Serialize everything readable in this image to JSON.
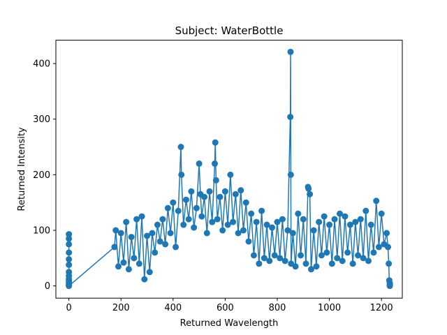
{
  "chart_data": {
    "type": "line",
    "title": "Subject: WaterBottle",
    "xlabel": "Returned Wavelength",
    "ylabel": "Returned Intensity",
    "xlim": [
      -50,
      1280
    ],
    "ylim": [
      -22,
      442
    ],
    "xticks": [
      "0",
      "200",
      "400",
      "600",
      "800",
      "1000",
      "1200"
    ],
    "yticks": [
      "0",
      "100",
      "200",
      "300",
      "400"
    ],
    "xtick_values": [
      0,
      200,
      400,
      600,
      800,
      1000,
      1200
    ],
    "ytick_values": [
      0,
      100,
      200,
      300,
      400
    ],
    "grid": false,
    "marker": "circle",
    "series_color": "#1f77b4",
    "series": [
      {
        "x": [
          0,
          0,
          0,
          0,
          0,
          0,
          0,
          0,
          0,
          0,
          0,
          0,
          0,
          175,
          180,
          190,
          200,
          210,
          220,
          230,
          240,
          250,
          260,
          270,
          280,
          290,
          300,
          310,
          320,
          330,
          340,
          350,
          360,
          370,
          380,
          390,
          400,
          410,
          420,
          430,
          432,
          440,
          450,
          460,
          470,
          480,
          490,
          500,
          505,
          510,
          520,
          530,
          540,
          550,
          560,
          562,
          565,
          570,
          580,
          590,
          600,
          610,
          620,
          630,
          640,
          650,
          660,
          670,
          680,
          690,
          700,
          710,
          720,
          730,
          740,
          750,
          760,
          770,
          780,
          790,
          800,
          810,
          820,
          830,
          840,
          850,
          851,
          852,
          853,
          860,
          870,
          880,
          890,
          900,
          910,
          918,
          920,
          925,
          930,
          940,
          950,
          960,
          970,
          980,
          990,
          1000,
          1010,
          1020,
          1030,
          1040,
          1050,
          1060,
          1070,
          1080,
          1090,
          1100,
          1110,
          1120,
          1130,
          1140,
          1150,
          1160,
          1170,
          1180,
          1190,
          1200,
          1210,
          1220,
          1225,
          1228,
          1230,
          1232,
          1232,
          1232
        ],
        "y": [
          93,
          85,
          75,
          60,
          48,
          38,
          25,
          18,
          12,
          8,
          5,
          2,
          0,
          70,
          100,
          35,
          95,
          42,
          115,
          30,
          88,
          50,
          120,
          40,
          125,
          12,
          90,
          25,
          95,
          60,
          110,
          80,
          120,
          75,
          140,
          95,
          150,
          70,
          135,
          250,
          200,
          110,
          155,
          120,
          170,
          105,
          140,
          220,
          165,
          125,
          160,
          95,
          170,
          115,
          220,
          258,
          190,
          120,
          160,
          100,
          170,
          110,
          200,
          115,
          165,
          95,
          172,
          100,
          150,
          80,
          130,
          55,
          115,
          40,
          135,
          50,
          110,
          45,
          105,
          55,
          115,
          50,
          120,
          45,
          100,
          304,
          421,
          200,
          40,
          95,
          35,
          130,
          55,
          120,
          40,
          178,
          175,
          165,
          30,
          100,
          35,
          115,
          55,
          125,
          60,
          110,
          40,
          120,
          50,
          130,
          45,
          125,
          60,
          110,
          40,
          115,
          55,
          120,
          50,
          135,
          45,
          110,
          60,
          153,
          70,
          130,
          75,
          95,
          70,
          40,
          10,
          5,
          2,
          0
        ]
      }
    ]
  }
}
